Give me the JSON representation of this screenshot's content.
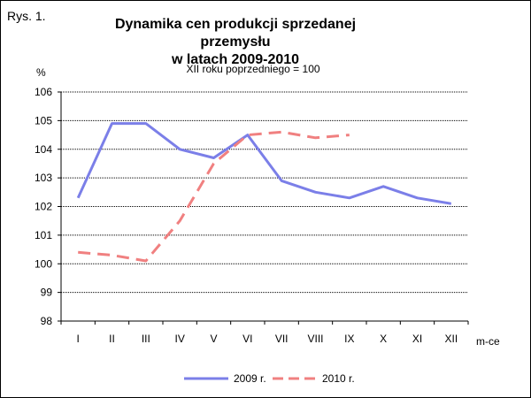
{
  "figure_label": "Rys. 1.",
  "chart_data": {
    "type": "line",
    "title_line1": "Dynamika cen produkcji sprzedanej przemysłu",
    "title_line2": "w latach 2009-2010",
    "subtitle": "XII roku poprzedniego = 100",
    "ylabel": "%",
    "xlabel": "m-ce",
    "categories": [
      "I",
      "II",
      "III",
      "IV",
      "V",
      "VI",
      "VII",
      "VIII",
      "IX",
      "X",
      "XI",
      "XII"
    ],
    "ylim": [
      98,
      106
    ],
    "yticks": [
      98,
      99,
      100,
      101,
      102,
      103,
      104,
      105,
      106
    ],
    "grid": true,
    "legend_position": "bottom",
    "series": [
      {
        "name": "2009 r.",
        "color": "#7b7fe8",
        "style": "solid",
        "values": [
          102.3,
          104.9,
          104.9,
          104.0,
          103.7,
          104.5,
          102.9,
          102.5,
          102.3,
          102.7,
          102.3,
          102.1
        ]
      },
      {
        "name": "2010 r.",
        "color": "#f08080",
        "style": "dashed",
        "values": [
          100.4,
          100.3,
          100.1,
          101.5,
          103.5,
          104.5,
          104.6,
          104.4,
          104.5,
          null,
          null,
          null
        ]
      }
    ]
  }
}
